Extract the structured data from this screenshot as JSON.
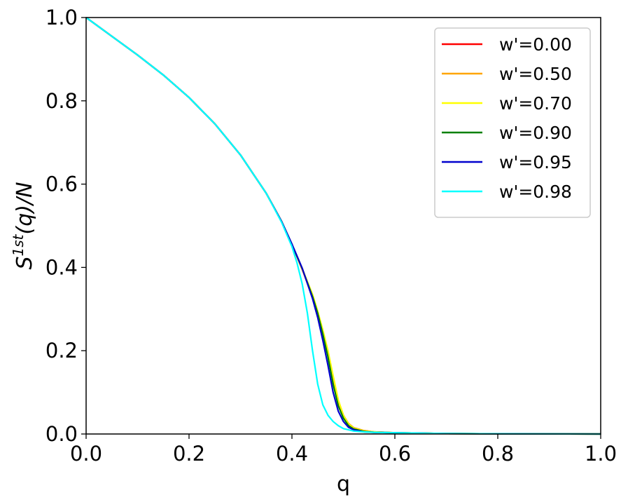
{
  "chart_data": {
    "type": "line",
    "xlabel": "q",
    "ylabel_base": "S",
    "ylabel_sup": "1st",
    "ylabel_rest": "(q)/N",
    "xlim": [
      0.0,
      1.0
    ],
    "ylim": [
      0.0,
      1.0
    ],
    "xticks": [
      "0.0",
      "0.2",
      "0.4",
      "0.6",
      "0.8",
      "1.0"
    ],
    "yticks": [
      "0.0",
      "0.2",
      "0.4",
      "0.6",
      "0.8",
      "1.0"
    ],
    "grid": false,
    "legend_position": "top-right",
    "series": [
      {
        "name": "w'=0.00",
        "color": "#ff0000",
        "x": [
          0.0,
          0.05,
          0.1,
          0.15,
          0.2,
          0.25,
          0.3,
          0.35,
          0.38,
          0.4,
          0.42,
          0.44,
          0.45,
          0.46,
          0.47,
          0.48,
          0.49,
          0.5,
          0.51,
          0.52,
          0.54,
          0.56,
          0.6,
          0.7,
          0.8,
          1.0
        ],
        "y": [
          1.0,
          0.955,
          0.91,
          0.862,
          0.808,
          0.745,
          0.67,
          0.578,
          0.51,
          0.455,
          0.395,
          0.33,
          0.29,
          0.245,
          0.195,
          0.135,
          0.08,
          0.045,
          0.025,
          0.015,
          0.008,
          0.005,
          0.003,
          0.001,
          0.0005,
          0.0
        ]
      },
      {
        "name": "w'=0.50",
        "color": "#ffa500",
        "x": [
          0.0,
          0.05,
          0.1,
          0.15,
          0.2,
          0.25,
          0.3,
          0.35,
          0.38,
          0.4,
          0.42,
          0.44,
          0.45,
          0.46,
          0.47,
          0.48,
          0.49,
          0.5,
          0.51,
          0.52,
          0.54,
          0.56,
          0.6,
          0.7,
          0.8,
          1.0
        ],
        "y": [
          1.0,
          0.955,
          0.91,
          0.862,
          0.808,
          0.745,
          0.67,
          0.578,
          0.51,
          0.455,
          0.395,
          0.332,
          0.292,
          0.247,
          0.196,
          0.136,
          0.08,
          0.045,
          0.025,
          0.015,
          0.008,
          0.005,
          0.003,
          0.001,
          0.0005,
          0.0
        ]
      },
      {
        "name": "w'=0.70",
        "color": "#ffff00",
        "x": [
          0.0,
          0.05,
          0.1,
          0.15,
          0.2,
          0.25,
          0.3,
          0.35,
          0.38,
          0.4,
          0.42,
          0.44,
          0.45,
          0.46,
          0.47,
          0.48,
          0.49,
          0.5,
          0.51,
          0.52,
          0.54,
          0.56,
          0.6,
          0.7,
          0.8,
          1.0
        ],
        "y": [
          1.0,
          0.955,
          0.91,
          0.862,
          0.808,
          0.745,
          0.67,
          0.578,
          0.51,
          0.455,
          0.397,
          0.335,
          0.295,
          0.25,
          0.2,
          0.14,
          0.082,
          0.045,
          0.024,
          0.014,
          0.007,
          0.005,
          0.003,
          0.001,
          0.0005,
          0.0
        ]
      },
      {
        "name": "w'=0.90",
        "color": "#008000",
        "x": [
          0.0,
          0.05,
          0.1,
          0.15,
          0.2,
          0.25,
          0.3,
          0.35,
          0.38,
          0.4,
          0.42,
          0.44,
          0.45,
          0.46,
          0.47,
          0.48,
          0.49,
          0.5,
          0.51,
          0.52,
          0.54,
          0.56,
          0.6,
          0.7,
          0.8,
          1.0
        ],
        "y": [
          1.0,
          0.955,
          0.91,
          0.862,
          0.808,
          0.745,
          0.67,
          0.578,
          0.51,
          0.455,
          0.397,
          0.33,
          0.29,
          0.24,
          0.185,
          0.12,
          0.068,
          0.038,
          0.02,
          0.012,
          0.006,
          0.004,
          0.003,
          0.001,
          0.0005,
          0.0
        ]
      },
      {
        "name": "w'=0.95",
        "color": "#0000cd",
        "x": [
          0.0,
          0.05,
          0.1,
          0.15,
          0.2,
          0.25,
          0.3,
          0.35,
          0.38,
          0.4,
          0.42,
          0.44,
          0.45,
          0.46,
          0.47,
          0.48,
          0.49,
          0.5,
          0.51,
          0.52,
          0.54,
          0.56,
          0.6,
          0.7,
          0.8,
          1.0
        ],
        "y": [
          1.0,
          0.955,
          0.91,
          0.862,
          0.808,
          0.745,
          0.67,
          0.578,
          0.51,
          0.456,
          0.398,
          0.325,
          0.28,
          0.225,
          0.165,
          0.1,
          0.055,
          0.03,
          0.016,
          0.01,
          0.005,
          0.004,
          0.003,
          0.001,
          0.0005,
          0.0
        ]
      },
      {
        "name": "w'=0.98",
        "color": "#00ffff",
        "x": [
          0.0,
          0.05,
          0.1,
          0.15,
          0.2,
          0.25,
          0.3,
          0.35,
          0.38,
          0.4,
          0.41,
          0.42,
          0.43,
          0.44,
          0.45,
          0.46,
          0.47,
          0.48,
          0.49,
          0.5,
          0.52,
          0.54,
          0.56,
          0.6,
          0.7,
          0.8,
          1.0
        ],
        "y": [
          1.0,
          0.955,
          0.91,
          0.862,
          0.808,
          0.745,
          0.67,
          0.578,
          0.508,
          0.45,
          0.41,
          0.36,
          0.29,
          0.2,
          0.12,
          0.07,
          0.045,
          0.03,
          0.02,
          0.013,
          0.007,
          0.005,
          0.004,
          0.003,
          0.001,
          0.0005,
          0.0
        ]
      }
    ]
  }
}
